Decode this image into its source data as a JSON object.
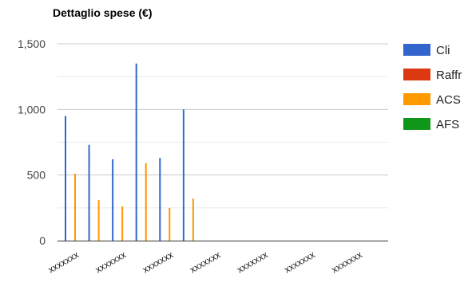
{
  "chart_data": {
    "type": "bar",
    "title": "Dettaglio spese (€)",
    "xlabel": "",
    "ylabel": "",
    "categories": [
      "xxxxxxx",
      "xxxxxxx",
      "xxxxxxx",
      "xxxxxxx",
      "xxxxxxx",
      "xxxxxxx",
      "xxxxxxx",
      "xxxxxxx",
      "xxxxxxx",
      "xxxxxxx",
      "xxxxxxx",
      "xxxxxxx",
      "xxxxxxx",
      "xxxxxxx"
    ],
    "shown_category_labels": [
      "xxxxxxx",
      "xxxxxxx",
      "xxxxxxx",
      "xxxxxxx",
      "xxxxxxx",
      "xxxxxxx",
      "xxxxxxx"
    ],
    "series": [
      {
        "name": "Cli",
        "color": "#3366cc",
        "values": [
          950,
          730,
          620,
          1350,
          630,
          1000,
          0,
          0,
          0,
          0,
          0,
          0,
          0,
          0
        ]
      },
      {
        "name": "Raffr",
        "color": "#dc3912",
        "values": [
          0,
          0,
          0,
          0,
          0,
          0,
          0,
          0,
          0,
          0,
          0,
          0,
          0,
          0
        ]
      },
      {
        "name": "ACS",
        "color": "#ff9900",
        "values": [
          510,
          310,
          260,
          590,
          250,
          320,
          0,
          0,
          0,
          0,
          0,
          0,
          0,
          0
        ]
      },
      {
        "name": "AFS",
        "color": "#109618",
        "values": [
          0,
          0,
          0,
          0,
          0,
          0,
          0,
          0,
          0,
          0,
          0,
          0,
          0,
          0
        ]
      }
    ],
    "ylim": [
      0,
      1500
    ],
    "yticks": [
      0,
      500,
      1000,
      1500
    ],
    "ytick_labels": [
      "0",
      "500",
      "1,000",
      "1,500"
    ],
    "grid": true,
    "legend_position": "right"
  }
}
